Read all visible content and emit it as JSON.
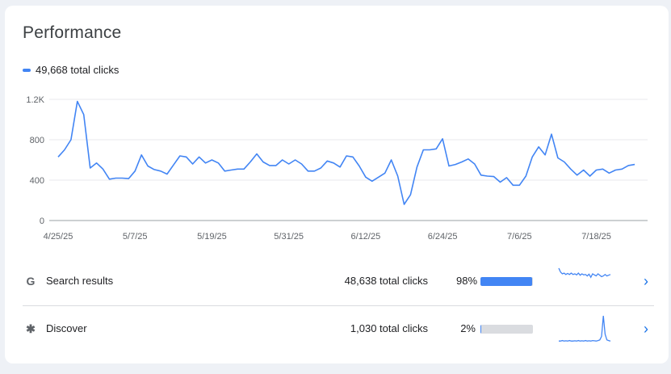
{
  "title": "Performance",
  "legend_label": "49,668 total clicks",
  "colors": {
    "series": "#4285f4",
    "grid": "#e8eaed",
    "accent": "#1a73e8"
  },
  "chart_data": {
    "type": "line",
    "title": "",
    "xlabel": "",
    "ylabel": "",
    "ylim": [
      0,
      1200
    ],
    "y_ticks": [
      0,
      400,
      800,
      1200
    ],
    "y_tick_labels": [
      "0",
      "400",
      "800",
      "1.2K"
    ],
    "grid": true,
    "x_tick_labels": [
      "4/25/25",
      "5/7/25",
      "5/19/25",
      "5/31/25",
      "6/12/25",
      "6/24/25",
      "7/6/25",
      "7/18/25"
    ],
    "x_ticks": [
      "2025-04-25",
      "2025-05-07",
      "2025-05-19",
      "2025-05-31",
      "2025-06-12",
      "2025-06-24",
      "2025-07-06",
      "2025-07-18"
    ],
    "x_start": "2025-04-25",
    "series": [
      {
        "values": [
          630,
          700,
          800,
          1180,
          1050,
          520,
          570,
          510,
          410,
          420,
          420,
          415,
          490,
          650,
          540,
          505,
          490,
          460,
          550,
          640,
          630,
          560,
          630,
          570,
          600,
          570,
          490,
          500,
          510,
          510,
          580,
          660,
          580,
          545,
          545,
          600,
          560,
          600,
          560,
          490,
          490,
          520,
          590,
          570,
          530,
          640,
          630,
          540,
          430,
          390,
          430,
          470,
          600,
          440,
          160,
          255,
          530,
          700,
          700,
          710,
          810,
          540,
          555,
          580,
          610,
          560,
          450,
          440,
          435,
          380,
          425,
          350,
          350,
          440,
          630,
          730,
          650,
          855,
          620,
          580,
          510,
          450,
          500,
          440,
          500,
          510,
          470,
          500,
          510,
          545,
          555
        ]
      }
    ]
  },
  "rows": [
    {
      "icon": "google-g-icon",
      "glyph": "G",
      "label": "Search results",
      "clicks": "48,638 total clicks",
      "percent": "98%",
      "share": 0.98,
      "spark": [
        780,
        670,
        620,
        640,
        600,
        630,
        600,
        640,
        600,
        620,
        590,
        640,
        580,
        620,
        590,
        600,
        560,
        610,
        520,
        620,
        590,
        560,
        620,
        580,
        540,
        560,
        600,
        560,
        580,
        600
      ]
    },
    {
      "icon": "discover-asterisk-icon",
      "glyph": "✱",
      "label": "Discover",
      "clicks": "1,030 total clicks",
      "percent": "2%",
      "share": 0.02,
      "spark": [
        10,
        10,
        12,
        10,
        11,
        10,
        12,
        10,
        10,
        11,
        10,
        12,
        10,
        11,
        10,
        12,
        10,
        11,
        10,
        12,
        11,
        10,
        12,
        15,
        30,
        120,
        40,
        15,
        12,
        10
      ]
    }
  ]
}
